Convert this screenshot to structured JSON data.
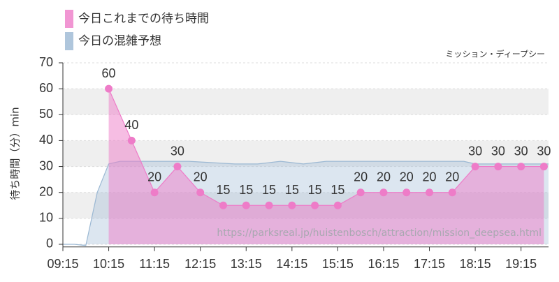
{
  "chart_data": {
    "type": "area",
    "subtitle": "ミッション・ディープシー",
    "ylabel": "待ち時間（分）min",
    "annotation": "https://parksreal.jp/huistenbosch/attraction/mission_deepsea.html",
    "xlim": [
      9.25,
      19.85
    ],
    "xticks": [
      {
        "value": 9.25,
        "label": "09:15"
      },
      {
        "value": 10.25,
        "label": "10:15"
      },
      {
        "value": 11.25,
        "label": "11:15"
      },
      {
        "value": 12.25,
        "label": "12:15"
      },
      {
        "value": 13.25,
        "label": "13:15"
      },
      {
        "value": 14.25,
        "label": "14:15"
      },
      {
        "value": 15.25,
        "label": "15:15"
      },
      {
        "value": 16.25,
        "label": "16:15"
      },
      {
        "value": 17.25,
        "label": "17:15"
      },
      {
        "value": 18.25,
        "label": "18:15"
      },
      {
        "value": 19.25,
        "label": "19:15"
      }
    ],
    "ylim": [
      -1,
      70
    ],
    "yticks": [
      0,
      10,
      20,
      30,
      40,
      50,
      60,
      70
    ],
    "grid": true,
    "series": [
      {
        "name": "今日の混雑予想",
        "color": "#9bb8d3",
        "x": [
          9.25,
          9.5,
          9.75,
          10.0,
          10.25,
          10.5,
          11.0,
          12.0,
          12.5,
          13.0,
          13.5,
          14.0,
          14.5,
          15.0,
          16.0,
          17.0,
          18.0,
          18.25,
          19.0,
          19.85
        ],
        "values": [
          0,
          0,
          -0.5,
          20,
          31,
          32,
          32,
          32,
          31.5,
          31,
          31,
          32,
          31,
          32,
          32,
          32,
          32,
          31,
          31,
          31
        ]
      },
      {
        "name": "今日これまでの待ち時間",
        "color": "#ee7cc8",
        "labels": true,
        "x": [
          10.25,
          10.75,
          11.25,
          11.75,
          12.25,
          12.75,
          13.25,
          13.75,
          14.25,
          14.75,
          15.25,
          15.75,
          16.25,
          16.75,
          17.25,
          17.75,
          18.25,
          18.75,
          19.25,
          19.75
        ],
        "values": [
          60,
          40,
          20,
          30,
          20,
          15,
          15,
          15,
          15,
          15,
          15,
          20,
          20,
          20,
          20,
          20,
          30,
          30,
          30,
          30
        ]
      }
    ]
  }
}
